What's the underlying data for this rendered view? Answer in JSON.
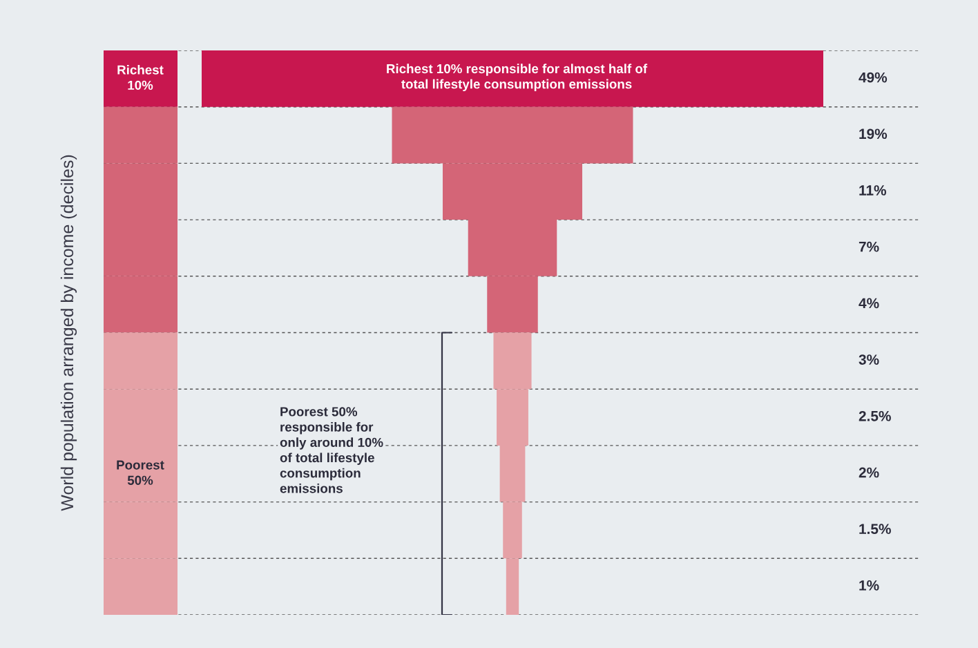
{
  "chart_data": {
    "type": "other",
    "ylabel": "World population arranged by income (deciles)",
    "categories": [
      null,
      null,
      null,
      null,
      null,
      null,
      null,
      null,
      null,
      null
    ],
    "values": [
      49,
      19,
      11,
      7,
      4,
      3,
      2.5,
      2,
      1.5,
      1
    ],
    "value_labels": [
      "49%",
      "19%",
      "11%",
      "7%",
      "4%",
      "3%",
      "2.5%",
      "2%",
      "1.5%",
      "1%"
    ],
    "colors": [
      "#c8174f",
      "#d46577",
      "#d46577",
      "#d46577",
      "#d46577",
      "#e5a1a6",
      "#e5a1a6",
      "#e5a1a6",
      "#e5a1a6",
      "#e5a1a6"
    ],
    "annotations": [
      "Richest\n10%",
      "Poorest\n50%",
      "Richest 10% responsible for almost half of\ntotal lifestyle consumption emissions",
      "Poorest 50%\nresponsible for\nonly around 10%\nof total lifestyle\nconsumption\nemissions"
    ]
  }
}
